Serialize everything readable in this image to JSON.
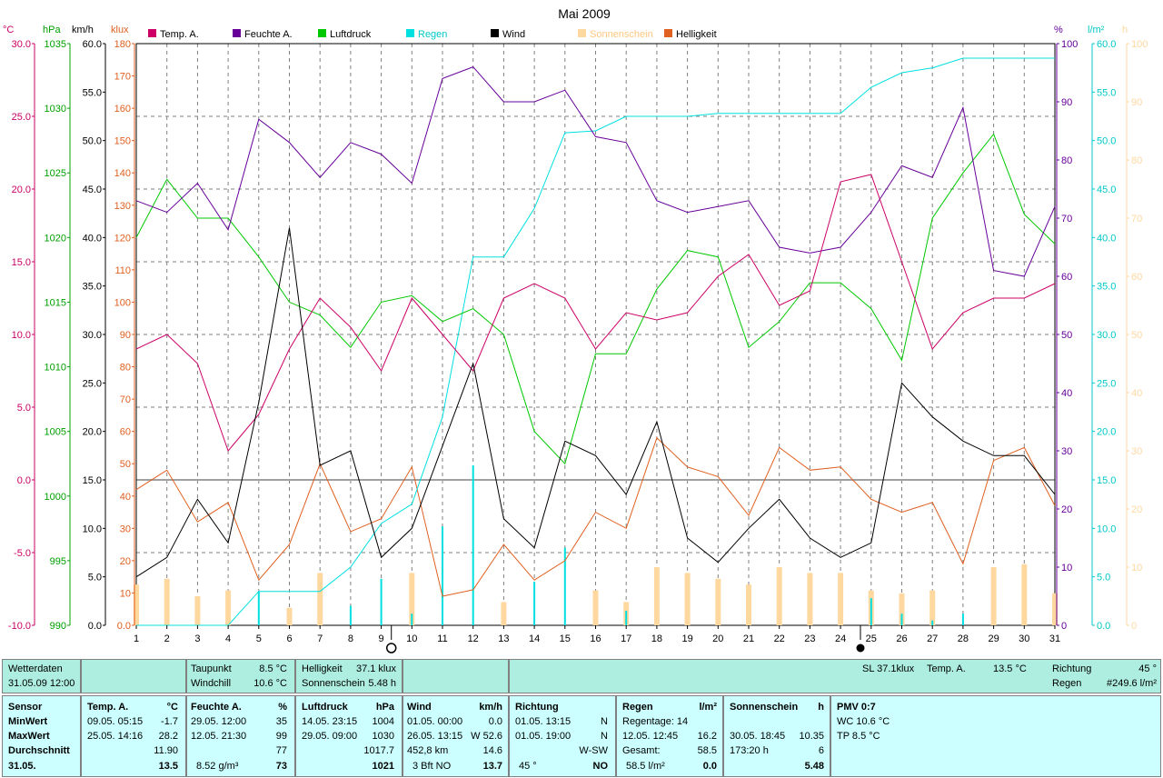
{
  "chart_data": {
    "type": "line",
    "title": "Mai 2009",
    "x": [
      1,
      2,
      3,
      4,
      5,
      6,
      7,
      8,
      9,
      10,
      11,
      12,
      13,
      14,
      15,
      16,
      17,
      18,
      19,
      20,
      21,
      22,
      23,
      24,
      25,
      26,
      27,
      28,
      29,
      30,
      31
    ],
    "axes_left": [
      {
        "unit": "°C",
        "color": "#cc0066",
        "min": -10,
        "max": 30,
        "ticks": [
          "30.0",
          "25.0",
          "20.0",
          "15.0",
          "10.0",
          "5.0",
          "0.0",
          "-5.0",
          "-10.0"
        ]
      },
      {
        "unit": "hPa",
        "color": "#00a000",
        "min": 990,
        "max": 1035,
        "ticks": [
          "1035",
          "1030",
          "1025",
          "1020",
          "1015",
          "1010",
          "1005",
          "1000",
          "995",
          "990"
        ]
      },
      {
        "unit": "km/h",
        "color": "#000000",
        "min": 0,
        "max": 60,
        "ticks": [
          "60.0",
          "55.0",
          "50.0",
          "45.0",
          "40.0",
          "35.0",
          "30.0",
          "25.0",
          "20.0",
          "15.0",
          "10.0",
          "5.0",
          "0.0"
        ]
      },
      {
        "unit": "klux",
        "color": "#e06020",
        "min": 0,
        "max": 180,
        "ticks": [
          "180",
          "170",
          "160",
          "150",
          "140",
          "130",
          "120",
          "110",
          "100",
          "90",
          "80",
          "70",
          "60",
          "50",
          "40",
          "30",
          "20",
          "10",
          "0.0"
        ]
      }
    ],
    "axes_right": [
      {
        "unit": "%",
        "color": "#660099",
        "min": 0,
        "max": 100,
        "ticks": [
          "100",
          "90",
          "80",
          "70",
          "60",
          "50",
          "40",
          "30",
          "20",
          "10",
          "0"
        ]
      },
      {
        "unit": "l/m²",
        "color": "#00c8c8",
        "min": 0,
        "max": 60,
        "ticks": [
          "60.0",
          "55.0",
          "50.0",
          "45.0",
          "40.0",
          "35.0",
          "30.0",
          "25.0",
          "20.0",
          "15.0",
          "10.0",
          "5.0",
          "0.0"
        ]
      },
      {
        "unit": "h",
        "color": "#ffd8a0",
        "min": 0,
        "max": 100,
        "ticks": [
          "100",
          "90",
          "80",
          "70",
          "60",
          "50",
          "40",
          "30",
          "20",
          "10",
          "0"
        ]
      }
    ],
    "series": [
      {
        "name": "Temp. A.",
        "color": "#cc0066",
        "axis": 0,
        "values": [
          9.0,
          10.0,
          8.0,
          2.0,
          4.5,
          9.0,
          12.5,
          10.5,
          7.5,
          12.5,
          10.0,
          7.5,
          12.5,
          13.5,
          12.5,
          9.0,
          11.5,
          11.0,
          11.5,
          14.0,
          15.5,
          12.0,
          13.0,
          20.5,
          21.0,
          15.0,
          9.0,
          11.5,
          12.5,
          12.5,
          13.5
        ]
      },
      {
        "name": "Feuchte A.",
        "color": "#660099",
        "axis": 4,
        "values": [
          73,
          71,
          76,
          68,
          87,
          83,
          77,
          83,
          81,
          76,
          94,
          96,
          90,
          90,
          92,
          84,
          83,
          73,
          71,
          72,
          73,
          65,
          64,
          65,
          71,
          79,
          77,
          89,
          61,
          60,
          72
        ]
      },
      {
        "name": "Luftdruck",
        "color": "#00c800",
        "axis": 1,
        "values": [
          1020.0,
          1024.5,
          1021.5,
          1021.5,
          1018.5,
          1015.0,
          1014.0,
          1011.5,
          1015.0,
          1015.5,
          1013.5,
          1014.5,
          1012.5,
          1005.0,
          1002.5,
          1011.0,
          1011.0,
          1016.0,
          1019.0,
          1018.5,
          1011.5,
          1013.5,
          1016.5,
          1016.5,
          1014.5,
          1010.5,
          1021.5,
          1025.0,
          1028.0,
          1021.8,
          1019.5
        ]
      },
      {
        "name": "Regen",
        "color": "#00e0e0",
        "axis": 5,
        "values": [
          0,
          0,
          0,
          0,
          3.5,
          3.5,
          3.5,
          6.0,
          10.5,
          12.5,
          21.5,
          38.0,
          38.0,
          43.0,
          50.8,
          51.0,
          52.5,
          52.5,
          52.5,
          52.8,
          52.8,
          52.8,
          52.8,
          52.8,
          55.5,
          57.0,
          57.5,
          58.5,
          58.5,
          58.5,
          58.5
        ]
      },
      {
        "name": "Wind",
        "color": "#000000",
        "axis": 2,
        "values": [
          5.0,
          7.0,
          13.0,
          8.5,
          23.0,
          41.0,
          16.5,
          18.0,
          7.0,
          10.0,
          18.5,
          27.0,
          11.0,
          8.0,
          19.0,
          17.5,
          13.5,
          21.0,
          9.0,
          6.5,
          10.0,
          13.0,
          9.0,
          7.0,
          8.5,
          25.0,
          21.5,
          19.0,
          17.5,
          17.5,
          13.5
        ]
      },
      {
        "name": "Sonnenschein",
        "color": "#ffd8a0",
        "axis": 6,
        "values": [
          7,
          8,
          5,
          6,
          0,
          3,
          9,
          0,
          0,
          9,
          0,
          0,
          4,
          0,
          0,
          6,
          4,
          10,
          9,
          8,
          7,
          10,
          9,
          9,
          6,
          5.5,
          6,
          0,
          10,
          10.5,
          5.5
        ]
      },
      {
        "name": "Helligkeit",
        "color": "#e06020",
        "axis": 3,
        "values": [
          42,
          48,
          32,
          38,
          14,
          25,
          50,
          29,
          33,
          49,
          9,
          11,
          25,
          14,
          20,
          35,
          30,
          58,
          49,
          46,
          34,
          55,
          48,
          49,
          39,
          35,
          38,
          19,
          51,
          55,
          37
        ]
      }
    ],
    "rain_bars": [
      0,
      0,
      0,
      0,
      3.5,
      0,
      0,
      2.0,
      4.8,
      1.2,
      10.2,
      16.5,
      0,
      4.5,
      8.0,
      0,
      1.5,
      0,
      0,
      0,
      0,
      0,
      0,
      0,
      2.8,
      1.2,
      0.5,
      1.2,
      0,
      0,
      0
    ],
    "xlabel": "",
    "ylabel": "",
    "grid": true,
    "legend": "top"
  },
  "panel": {
    "row1": {
      "wetterdaten": {
        "label": "Wetterdaten",
        "value": "31.05.09 12:00"
      },
      "taupunkt": {
        "label": "Taupunkt",
        "value": "8.5 °C"
      },
      "windchill": {
        "label": "Windchill",
        "value": "10.6 °C"
      },
      "helligkeit": {
        "label": "Helligkeit",
        "value": "37.1 klux"
      },
      "sonnenschein": {
        "label": "Sonnenschein",
        "value": "5.48 h"
      },
      "sl": "SL 37.1klux",
      "temp": {
        "label": "Temp. A.",
        "value": "13.5 °C"
      },
      "richtung": {
        "label": "Richtung",
        "value": "45 °"
      },
      "regen": {
        "label": "Regen",
        "value": "#249.6 l/m²"
      }
    },
    "sensor_col": {
      "title": "Sensor",
      "min": "MinWert",
      "max": "MaxWert",
      "avg": "Durchschnitt",
      "date": "31.05."
    },
    "temp_col": {
      "title": "Temp. A.",
      "unit": "°C",
      "min_time": "09.05.  05:15",
      "min_val": "-1.7",
      "max_time": "25.05.  14:16",
      "max_val": "28.2",
      "avg": "11.90",
      "cur": "13.5"
    },
    "feuchte_col": {
      "title": "Feuchte A.",
      "unit": "%",
      "min_time": "29.05.  12:00",
      "min_val": "35",
      "max_time": "12.05.  21:30",
      "max_val": "99",
      "avg": "77",
      "abs": "8.52 g/m³",
      "cur": "73"
    },
    "luftdruck_col": {
      "title": "Luftdruck",
      "unit": "hPa",
      "min_time": "14.05.  23:15",
      "min_val": "1004",
      "max_time": "29.05.  09:00",
      "max_val": "1030",
      "avg": "1017.7",
      "cur": "1021"
    },
    "wind_col": {
      "title": "Wind",
      "unit": "km/h",
      "min_time": "01.05.  00:00",
      "min_val": "0.0",
      "max_time": "26.05.  13:15",
      "max_val": "W 52.6",
      "dist": "452,8 km",
      "avg": "14.6",
      "bft": "3 Bft NO",
      "cur": "13.7"
    },
    "richtung_col": {
      "title": "Richtung",
      "r1_time": "01.05.  13:15",
      "r1_val": "N",
      "r2_time": "01.05.  19:00",
      "r2_val": "N",
      "avg": "W-SW",
      "cur_deg": "45 °",
      "cur": "NO"
    },
    "regen_col": {
      "title": "Regen",
      "unit": "l/m²",
      "tage": "Regentage: 14",
      "max_time": "12.05.  12:45",
      "max_val": "16.2",
      "gesamt_label": "Gesamt:",
      "gesamt_val": "58.5",
      "sum": "58.5 l/m²",
      "cur": "0.0"
    },
    "sonne_col": {
      "title": "Sonnenschein",
      "unit": "h",
      "max_time": "30.05.  18:45",
      "max_val": "10.35",
      "total": "173:20 h",
      "avg": "6",
      "cur": "5.48"
    },
    "pmv_col": {
      "title": "PMV 0:7",
      "wc": "WC 10.6 °C",
      "tp": "TP 8.5 °C"
    }
  }
}
